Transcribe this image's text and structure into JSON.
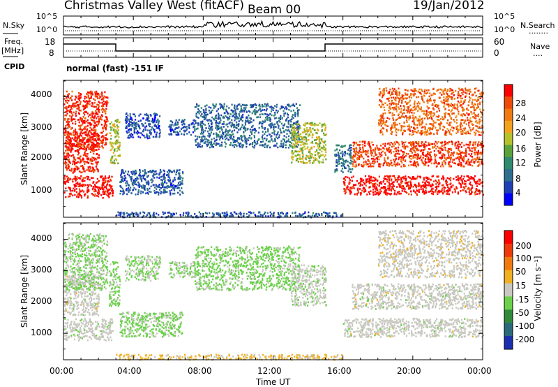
{
  "header": {
    "station": "Christmas Valley West (fitACF)",
    "beam": "Beam 00",
    "date": "19/Jan/2012"
  },
  "top_panels": {
    "nsky_label": "N.Sky",
    "nsearch_label": "N.Search",
    "nsearch_legend": "........",
    "noise_ticks_left": [
      "10^5",
      "10^0"
    ],
    "noise_ticks_right": [
      "10^5",
      "10^0"
    ],
    "freq_label": "Freq.",
    "freq_unit": "[MHz]",
    "freq_ticks": [
      "18",
      "8"
    ],
    "nave_label": "Nave",
    "nave_legend": "....",
    "nave_ticks": [
      "60",
      "0"
    ],
    "cpid_label": "CPID",
    "cpid_value": "normal (fast) -151 IF"
  },
  "axes": {
    "ylabel": "Slant Range [km]",
    "yticks": [
      "1000",
      "2000",
      "3000",
      "4000"
    ],
    "xticks": [
      "00:00",
      "04:00",
      "08:00",
      "12:00",
      "16:00",
      "20:00",
      "00:00"
    ],
    "xlabel": "Time UT"
  },
  "colorbars": {
    "power": {
      "label": "Power [dB]",
      "ticks": [
        "4",
        "8",
        "12",
        "16",
        "20",
        "24",
        "28"
      ],
      "colors": [
        "#0000ff",
        "#1f3fb4",
        "#2e6e8e",
        "#2f8a6e",
        "#5aa23a",
        "#b5c22c",
        "#f2a21f",
        "#f07a10",
        "#ee4a0a",
        "#ff0000"
      ]
    },
    "velocity": {
      "label": "Velocity [m s⁻¹]",
      "ticks": [
        "200",
        "100",
        "50",
        "15",
        "-15",
        "-50",
        "-100",
        "-200"
      ],
      "colors": [
        "#1a2fb0",
        "#2a6a7a",
        "#2f8a3a",
        "#6bd14a",
        "#c8c8c0",
        "#f0b020",
        "#f07a10",
        "#ee3a0a",
        "#ff0000"
      ]
    }
  },
  "chart_data": [
    {
      "type": "line",
      "title": "Christmas Valley West (fitACF)",
      "xlabel": "",
      "ylabel": "N.Sky",
      "x_range": [
        "00:00",
        "24:00"
      ],
      "yscale": "log",
      "ylim": [
        1,
        100000
      ]
    },
    {
      "type": "line",
      "xlabel": "",
      "ylabel": "Freq. [MHz]",
      "x_range": [
        "00:00",
        "24:00"
      ],
      "ylim": [
        8,
        18
      ],
      "x": [
        "00:00",
        "03:00",
        "03:00",
        "15:00",
        "15:00",
        "24:00"
      ],
      "values": [
        13,
        13,
        10.3,
        10.3,
        13,
        13
      ]
    },
    {
      "type": "heatmap",
      "ylabel": "Slant Range [km]",
      "xlabel": "",
      "x_range": [
        "00:00",
        "24:00"
      ],
      "ylim": [
        180,
        4500
      ],
      "colorbar": "Power [dB]",
      "clim": [
        0,
        30
      ],
      "regions": [
        {
          "t": [
            0.0,
            2.8
          ],
          "range": [
            800,
            1500
          ],
          "power": 29
        },
        {
          "t": [
            0.0,
            2.0
          ],
          "range": [
            1600,
            2900
          ],
          "power": 28
        },
        {
          "t": [
            0.0,
            2.5
          ],
          "range": [
            2400,
            4200
          ],
          "power": 27
        },
        {
          "t": [
            2.6,
            3.2
          ],
          "range": [
            1900,
            3300
          ],
          "power": 16
        },
        {
          "t": [
            3.2,
            6.8
          ],
          "range": [
            900,
            1700
          ],
          "power": 6
        },
        {
          "t": [
            3.5,
            5.5
          ],
          "range": [
            2700,
            3500
          ],
          "power": 5
        },
        {
          "t": [
            6.0,
            7.5
          ],
          "range": [
            2800,
            3300
          ],
          "power": 6
        },
        {
          "t": [
            7.5,
            13.5
          ],
          "range": [
            2400,
            3800
          ],
          "power": 7
        },
        {
          "t": [
            13.0,
            15.0
          ],
          "range": [
            1900,
            3200
          ],
          "power": 16
        },
        {
          "t": [
            15.5,
            16.5
          ],
          "range": [
            1600,
            2500
          ],
          "power": 8
        },
        {
          "t": [
            16.0,
            24.0
          ],
          "range": [
            900,
            1500
          ],
          "power": 29
        },
        {
          "t": [
            16.5,
            24.0
          ],
          "range": [
            1800,
            2600
          ],
          "power": 26
        },
        {
          "t": [
            18.0,
            24.0
          ],
          "range": [
            2800,
            4300
          ],
          "power": 24
        },
        {
          "t": [
            3.0,
            16.0
          ],
          "range": [
            180,
            350
          ],
          "power": 6
        }
      ]
    },
    {
      "type": "heatmap",
      "ylabel": "Slant Range [km]",
      "xlabel": "Time UT",
      "x_range": [
        "00:00",
        "24:00"
      ],
      "ylim": [
        180,
        4500
      ],
      "colorbar": "Velocity [m s⁻¹]",
      "clim": [
        -250,
        250
      ],
      "regions": [
        {
          "t": [
            0.0,
            2.8
          ],
          "range": [
            800,
            1500
          ],
          "velocity": -5
        },
        {
          "t": [
            0.0,
            2.0
          ],
          "range": [
            1600,
            2900
          ],
          "velocity": 0
        },
        {
          "t": [
            0.0,
            2.5
          ],
          "range": [
            2400,
            4200
          ],
          "velocity": -30
        },
        {
          "t": [
            2.6,
            3.2
          ],
          "range": [
            1900,
            3300
          ],
          "velocity": -40
        },
        {
          "t": [
            3.2,
            6.8
          ],
          "range": [
            900,
            1700
          ],
          "velocity": -40
        },
        {
          "t": [
            3.5,
            5.5
          ],
          "range": [
            2700,
            3500
          ],
          "velocity": -30
        },
        {
          "t": [
            6.0,
            7.5
          ],
          "range": [
            2800,
            3300
          ],
          "velocity": -30
        },
        {
          "t": [
            7.5,
            13.5
          ],
          "range": [
            2400,
            3800
          ],
          "velocity": -45
        },
        {
          "t": [
            13.0,
            15.0
          ],
          "range": [
            1900,
            3200
          ],
          "velocity": -10
        },
        {
          "t": [
            16.0,
            24.0
          ],
          "range": [
            900,
            1500
          ],
          "velocity": 0
        },
        {
          "t": [
            16.5,
            24.0
          ],
          "range": [
            1800,
            2600
          ],
          "velocity": 0
        },
        {
          "t": [
            18.0,
            24.0
          ],
          "range": [
            2800,
            4300
          ],
          "velocity": 5
        },
        {
          "t": [
            3.0,
            16.0
          ],
          "range": [
            180,
            350
          ],
          "velocity": 40
        }
      ]
    }
  ]
}
